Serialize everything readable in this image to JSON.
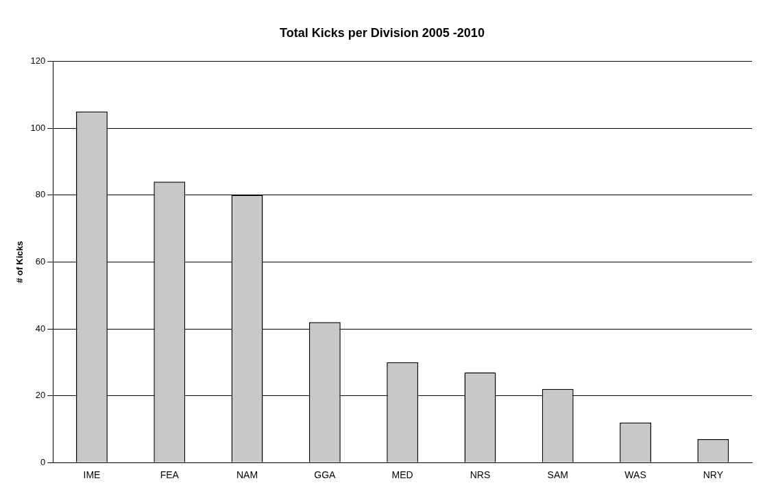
{
  "chart_data": {
    "type": "bar",
    "title": "Total Kicks per Division 2005 -2010",
    "ylabel": "# of Kicks",
    "categories": [
      "IME",
      "FEA",
      "NAM",
      "GGA",
      "MED",
      "NRS",
      "SAM",
      "WAS",
      "NRY"
    ],
    "values": [
      105,
      84,
      80,
      42,
      30,
      27,
      22,
      12,
      7
    ],
    "color": "#c8c8c8",
    "ylim": [
      0,
      120
    ],
    "yticks": [
      0,
      20,
      40,
      60,
      80,
      100,
      120
    ],
    "grid": "y",
    "legend": false
  }
}
